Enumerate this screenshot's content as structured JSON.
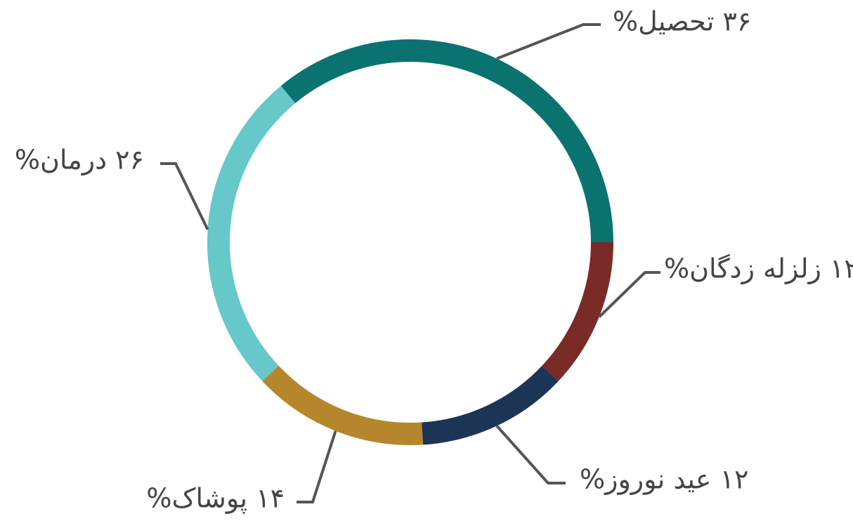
{
  "chart_data": {
    "type": "donut",
    "categories": [
      "تحصیل",
      "درمان",
      "پوشاک",
      "عید نوروز",
      "زلزله زدگان"
    ],
    "values": [
      36,
      26,
      14,
      12,
      12
    ],
    "value_labels": [
      "۳۶ تحصیل%",
      "۲۶ درمان%",
      "۱۴ پوشاک%",
      "۱۲ عید نوروز%",
      "۱۲ زلزله زدگان%"
    ],
    "colors": [
      "#0a7370",
      "#66c8c8",
      "#b5862b",
      "#1c3557",
      "#7a2b27"
    ]
  }
}
